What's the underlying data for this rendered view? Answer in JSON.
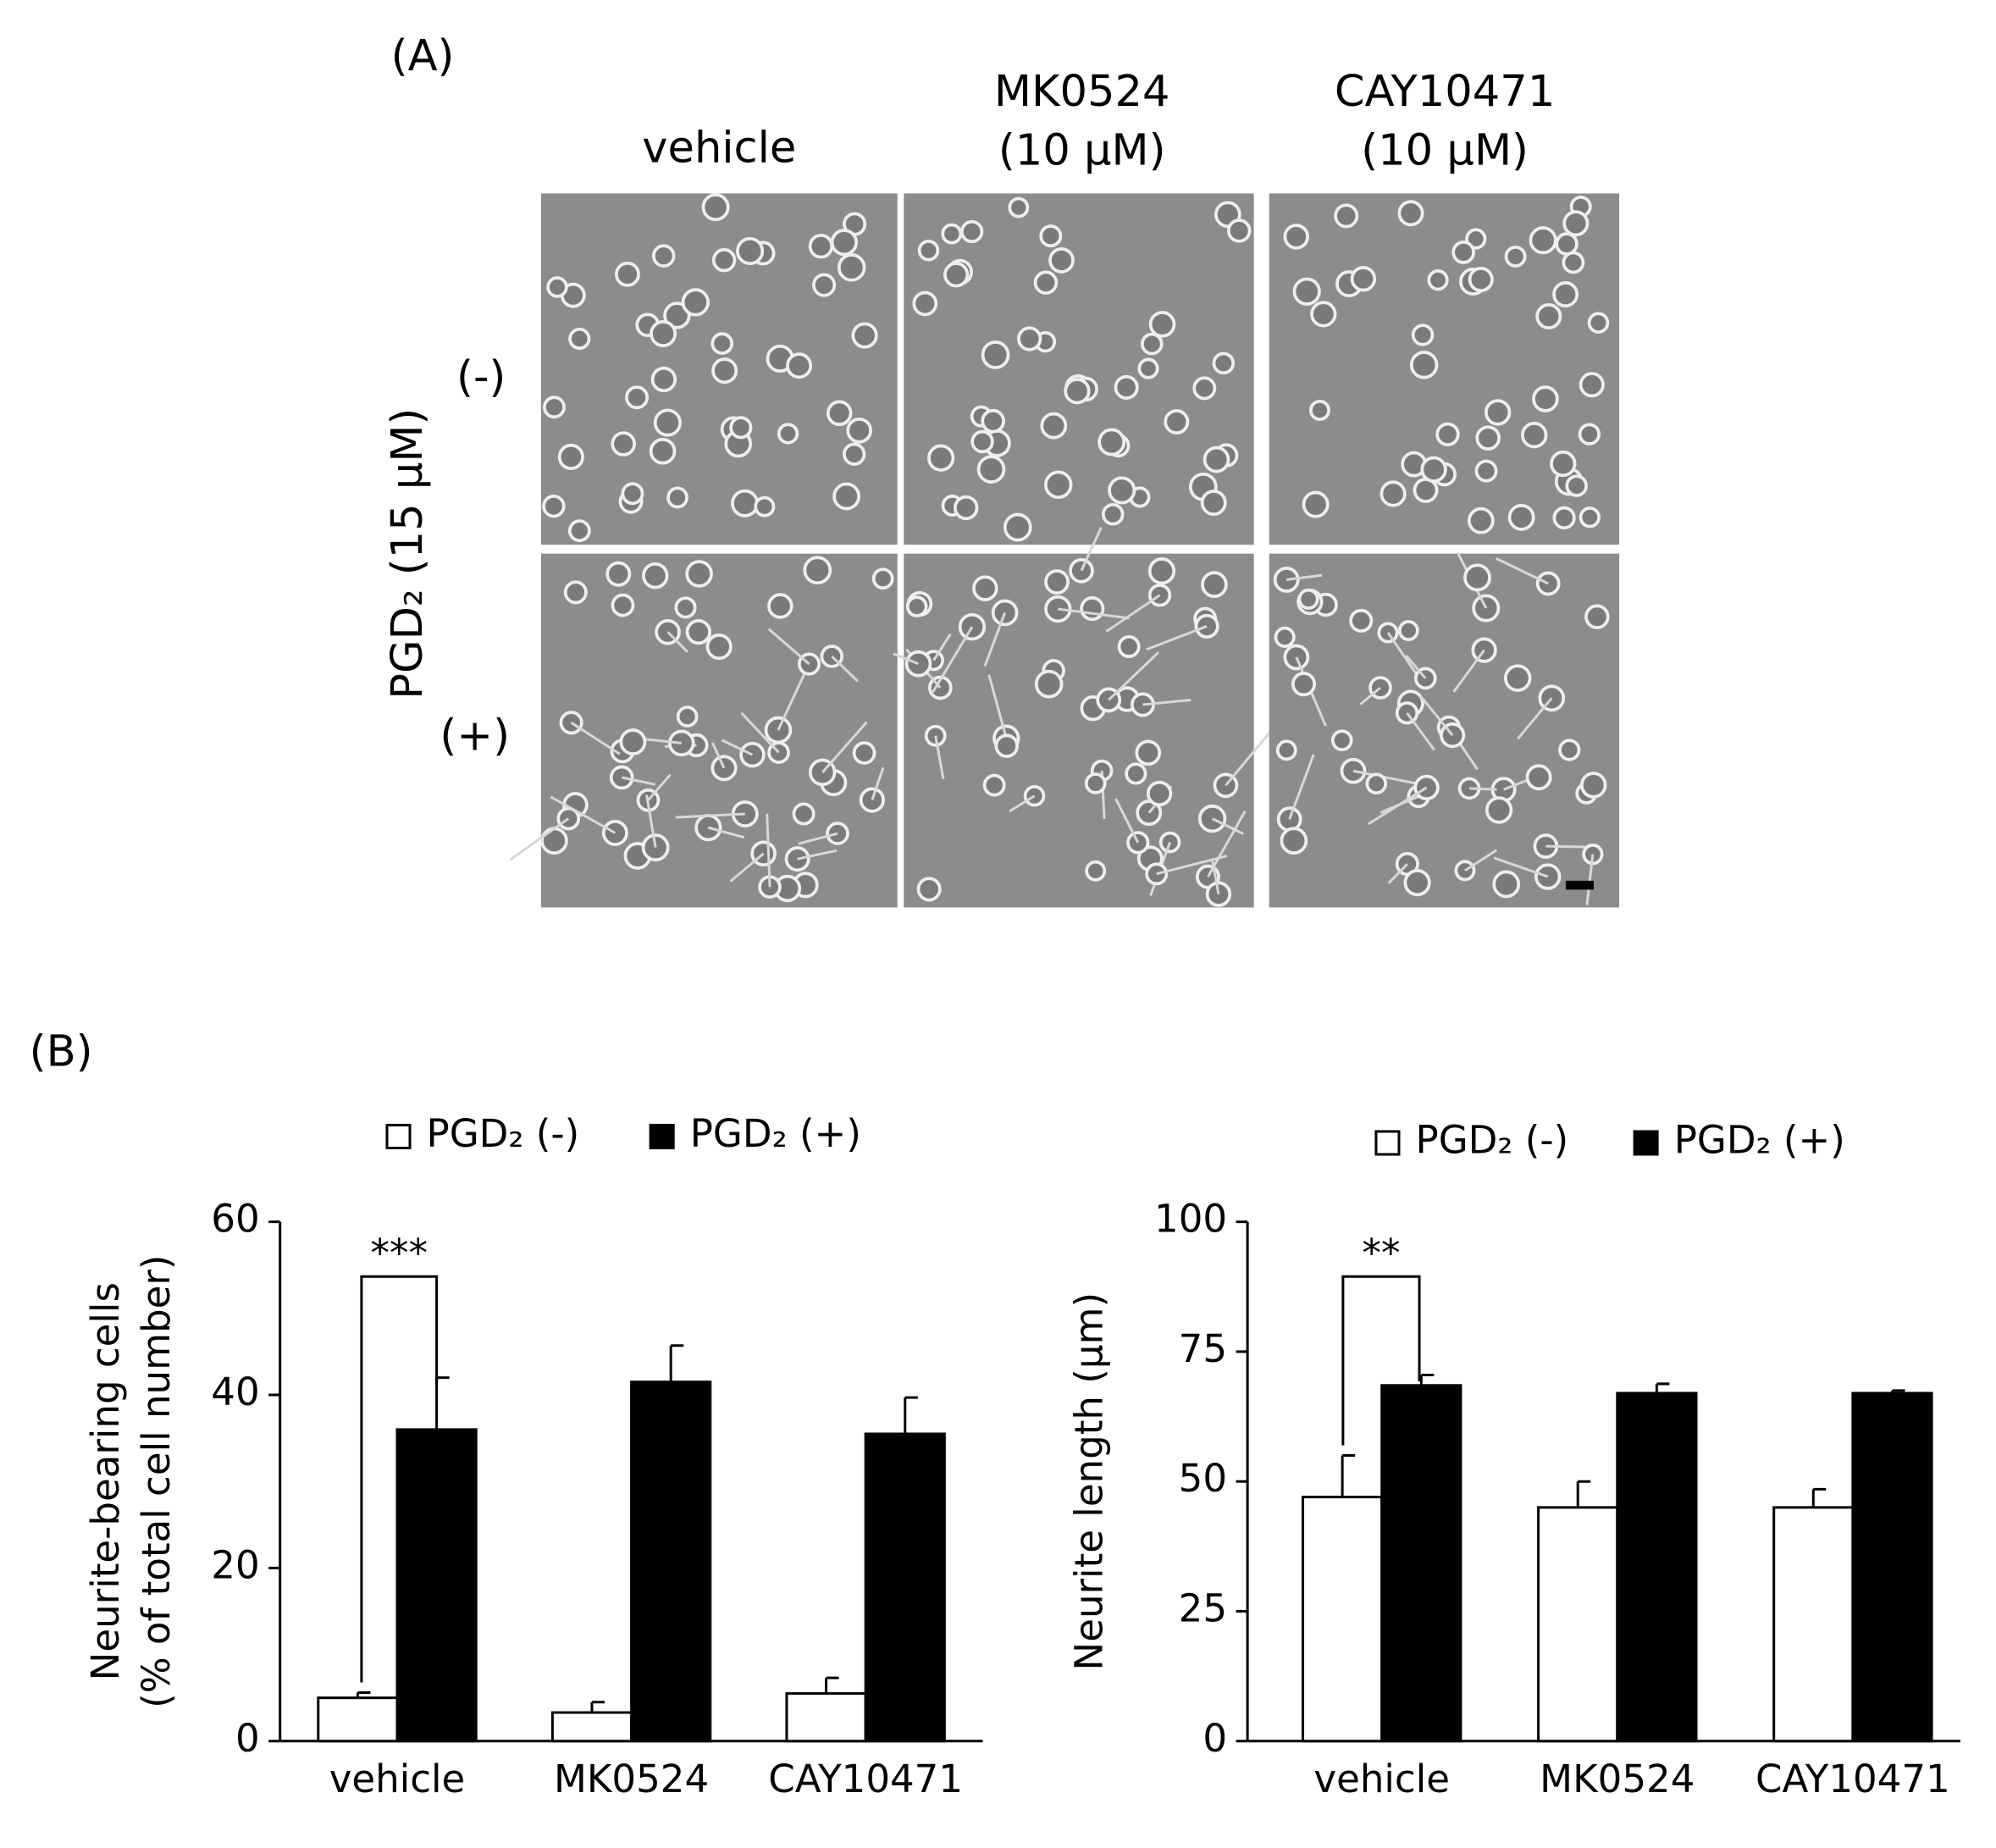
{
  "panel_a": {
    "label": "(A)",
    "columns": [
      [
        "vehicle"
      ],
      [
        "MK0524",
        "(10 μM)"
      ],
      [
        "CAY10471",
        "(10 μM)"
      ]
    ],
    "rows": [
      "(-)",
      "(+)"
    ],
    "row_title": "PGD₂ (15 μM)"
  },
  "panel_b": {
    "label": "(B)"
  },
  "chart_data": [
    {
      "type": "bar",
      "categories": [
        "vehicle",
        "MK0524",
        "CAY10471"
      ],
      "series": [
        {
          "name": "PGD₂ (-)",
          "color": "#ffffff",
          "values": [
            5,
            3.3,
            5.5
          ],
          "errors": [
            0.6,
            1.2,
            1.8
          ]
        },
        {
          "name": "PGD₂ (+)",
          "color": "#000000",
          "values": [
            36,
            41.5,
            35.5
          ],
          "errors": [
            6,
            4.2,
            4.2
          ]
        }
      ],
      "ylabel": [
        "Neurite-bearing cells",
        "(% of total cell number)"
      ],
      "ylim": [
        0,
        60
      ],
      "yticks": [
        0,
        20,
        40,
        60
      ],
      "annotation": "***"
    },
    {
      "type": "bar",
      "categories": [
        "vehicle",
        "MK0524",
        "CAY10471"
      ],
      "series": [
        {
          "name": "PGD₂ (-)",
          "color": "#ffffff",
          "values": [
            47,
            45,
            45
          ],
          "errors": [
            8,
            5,
            3.5
          ]
        },
        {
          "name": "PGD₂ (+)",
          "color": "#000000",
          "values": [
            68.5,
            67,
            67
          ],
          "errors": [
            2,
            1.8,
            0.5
          ]
        }
      ],
      "ylabel": [
        "Neurite length (μm)"
      ],
      "ylim": [
        0,
        100
      ],
      "yticks": [
        0,
        25,
        50,
        75,
        100
      ],
      "annotation": "**"
    }
  ]
}
